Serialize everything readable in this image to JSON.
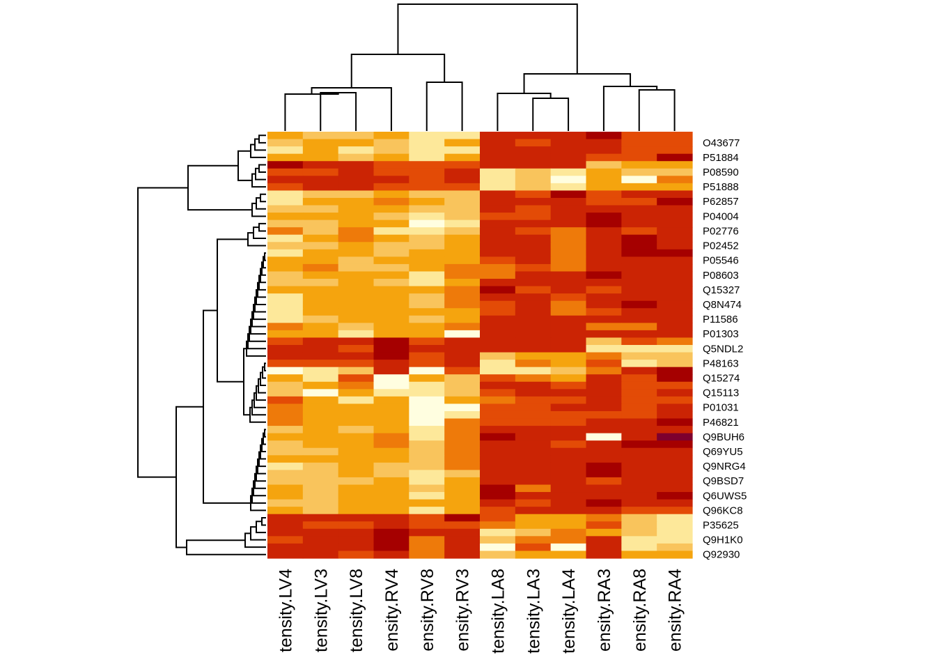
{
  "chart_data": {
    "type": "heatmap",
    "title": "",
    "xlabel": "",
    "ylabel": "",
    "color_scale": [
      "#fffee0",
      "#fde89a",
      "#f9c45c",
      "#f5a40e",
      "#ee7a0a",
      "#e34b06",
      "#cb2404",
      "#a50000",
      "#7e002e"
    ],
    "columns": [
      "tensity.LV4",
      "tensity.LV3",
      "tensity.LV8",
      "ensity.RV4",
      "ensity.RV8",
      "ensity.RV3",
      "tensity.LA8",
      "tensity.LA3",
      "tensity.LA4",
      "ensity.RA3",
      "ensity.RA8",
      "ensity.RA4"
    ],
    "row_labels": [
      "O43677",
      "P51884",
      "P08590",
      "P51888",
      "P62857",
      "P04004",
      "P02776",
      "P02452",
      "P05546",
      "P08603",
      "Q15327",
      "Q8N474",
      "P11586",
      "P01303",
      "Q5NDL2",
      "P48163",
      "Q15274",
      "Q15113",
      "P01031",
      "P46821",
      "Q9BUH6",
      "Q69YU5",
      "Q9NRG4",
      "Q9BSD7",
      "Q6UWS5",
      "Q96KC8",
      "P35625",
      "Q9H1K0",
      "Q92930"
    ],
    "n_rows": 58,
    "value_range": [
      0,
      8
    ],
    "values": [
      [
        3,
        2,
        2,
        3,
        1,
        1,
        6,
        6,
        6,
        7,
        5,
        5
      ],
      [
        2,
        3,
        3,
        2,
        1,
        3,
        6,
        5,
        6,
        6,
        5,
        5
      ],
      [
        1,
        3,
        1,
        2,
        1,
        1,
        6,
        6,
        6,
        6,
        5,
        5
      ],
      [
        3,
        3,
        2,
        3,
        1,
        3,
        6,
        6,
        6,
        5,
        5,
        7
      ],
      [
        7,
        6,
        6,
        5,
        5,
        5,
        6,
        6,
        6,
        2,
        3,
        3
      ],
      [
        5,
        5,
        6,
        5,
        5,
        6,
        1,
        2,
        1,
        3,
        2,
        2
      ],
      [
        6,
        6,
        6,
        6,
        5,
        6,
        1,
        2,
        0,
        3,
        0,
        4
      ],
      [
        5,
        6,
        6,
        5,
        5,
        5,
        1,
        2,
        1,
        3,
        3,
        3
      ],
      [
        1,
        2,
        2,
        3,
        2,
        2,
        6,
        5,
        7,
        5,
        6,
        6
      ],
      [
        1,
        3,
        3,
        4,
        3,
        2,
        6,
        6,
        6,
        5,
        5,
        7
      ],
      [
        2,
        2,
        3,
        3,
        2,
        2,
        6,
        5,
        6,
        6,
        6,
        6
      ],
      [
        3,
        3,
        3,
        2,
        1,
        2,
        5,
        5,
        6,
        7,
        6,
        6
      ],
      [
        2,
        2,
        3,
        3,
        0,
        1,
        6,
        6,
        6,
        7,
        6,
        6
      ],
      [
        4,
        2,
        4,
        1,
        1,
        2,
        6,
        5,
        4,
        6,
        5,
        6
      ],
      [
        1,
        3,
        4,
        3,
        2,
        3,
        6,
        6,
        4,
        6,
        7,
        6
      ],
      [
        2,
        2,
        3,
        2,
        2,
        3,
        6,
        6,
        4,
        6,
        7,
        6
      ],
      [
        1,
        3,
        3,
        2,
        3,
        3,
        6,
        6,
        4,
        6,
        7,
        7
      ],
      [
        3,
        3,
        2,
        3,
        3,
        3,
        5,
        6,
        4,
        6,
        6,
        6
      ],
      [
        3,
        4,
        2,
        2,
        3,
        4,
        4,
        5,
        4,
        6,
        6,
        6
      ],
      [
        2,
        3,
        3,
        3,
        1,
        4,
        4,
        6,
        6,
        7,
        6,
        6
      ],
      [
        2,
        2,
        3,
        2,
        1,
        3,
        6,
        6,
        6,
        6,
        6,
        6
      ],
      [
        3,
        3,
        3,
        3,
        3,
        4,
        7,
        5,
        6,
        5,
        6,
        6
      ],
      [
        1,
        3,
        3,
        3,
        2,
        4,
        6,
        6,
        5,
        6,
        6,
        6
      ],
      [
        1,
        3,
        3,
        3,
        2,
        4,
        5,
        6,
        4,
        6,
        7,
        6
      ],
      [
        1,
        3,
        3,
        3,
        3,
        3,
        5,
        6,
        4,
        5,
        6,
        6
      ],
      [
        1,
        2,
        3,
        3,
        2,
        3,
        6,
        6,
        6,
        6,
        6,
        6
      ],
      [
        4,
        3,
        2,
        3,
        3,
        4,
        6,
        6,
        6,
        4,
        4,
        6
      ],
      [
        3,
        3,
        1,
        3,
        3,
        0,
        6,
        6,
        6,
        6,
        6,
        6
      ],
      [
        5,
        6,
        6,
        7,
        5,
        6,
        6,
        6,
        6,
        2,
        5,
        4
      ],
      [
        6,
        6,
        5,
        7,
        6,
        6,
        6,
        6,
        6,
        1,
        1,
        1
      ],
      [
        6,
        6,
        6,
        7,
        5,
        6,
        2,
        3,
        3,
        4,
        2,
        2
      ],
      [
        5,
        5,
        5,
        6,
        5,
        6,
        1,
        4,
        3,
        5,
        1,
        2
      ],
      [
        0,
        1,
        2,
        6,
        0,
        5,
        1,
        1,
        2,
        4,
        6,
        7
      ],
      [
        3,
        1,
        5,
        0,
        3,
        2,
        5,
        4,
        3,
        6,
        5,
        7
      ],
      [
        2,
        3,
        4,
        0,
        1,
        2,
        6,
        6,
        5,
        6,
        5,
        5
      ],
      [
        2,
        0,
        3,
        1,
        1,
        2,
        5,
        6,
        6,
        6,
        5,
        6
      ],
      [
        5,
        3,
        1,
        3,
        0,
        3,
        4,
        5,
        5,
        6,
        5,
        5
      ],
      [
        4,
        3,
        3,
        3,
        0,
        0,
        5,
        5,
        6,
        6,
        5,
        6
      ],
      [
        4,
        3,
        3,
        3,
        0,
        1,
        5,
        5,
        5,
        5,
        5,
        6
      ],
      [
        4,
        3,
        3,
        3,
        0,
        4,
        5,
        5,
        5,
        6,
        6,
        7
      ],
      [
        2,
        3,
        2,
        3,
        1,
        4,
        6,
        6,
        6,
        6,
        6,
        6
      ],
      [
        3,
        3,
        3,
        4,
        1,
        4,
        7,
        6,
        6,
        0,
        6,
        8
      ],
      [
        2,
        3,
        3,
        4,
        2,
        4,
        6,
        6,
        5,
        6,
        7,
        7
      ],
      [
        2,
        2,
        3,
        3,
        2,
        4,
        6,
        6,
        6,
        6,
        6,
        6
      ],
      [
        3,
        3,
        3,
        3,
        2,
        4,
        6,
        6,
        6,
        6,
        6,
        6
      ],
      [
        1,
        2,
        3,
        2,
        2,
        4,
        6,
        6,
        6,
        7,
        6,
        6
      ],
      [
        2,
        2,
        3,
        2,
        1,
        2,
        6,
        6,
        6,
        7,
        6,
        6
      ],
      [
        2,
        2,
        2,
        3,
        1,
        3,
        6,
        6,
        6,
        5,
        6,
        6
      ],
      [
        3,
        2,
        3,
        3,
        2,
        3,
        7,
        4,
        6,
        6,
        6,
        6
      ],
      [
        3,
        2,
        3,
        3,
        1,
        3,
        7,
        6,
        6,
        6,
        6,
        7
      ],
      [
        2,
        2,
        3,
        3,
        3,
        3,
        6,
        5,
        6,
        7,
        6,
        6
      ],
      [
        3,
        2,
        3,
        3,
        1,
        3,
        5,
        6,
        6,
        6,
        5,
        5
      ],
      [
        6,
        6,
        6,
        6,
        5,
        7,
        5,
        3,
        3,
        4,
        2,
        1
      ],
      [
        6,
        5,
        5,
        6,
        5,
        5,
        4,
        3,
        3,
        5,
        2,
        1
      ],
      [
        6,
        6,
        6,
        7,
        6,
        6,
        1,
        2,
        4,
        3,
        2,
        1
      ],
      [
        5,
        6,
        6,
        7,
        4,
        6,
        2,
        4,
        4,
        6,
        1,
        1
      ],
      [
        6,
        6,
        6,
        7,
        4,
        6,
        0,
        5,
        0,
        6,
        1,
        2
      ],
      [
        6,
        6,
        5,
        6,
        4,
        6,
        2,
        3,
        3,
        6,
        3,
        3
      ]
    ]
  }
}
